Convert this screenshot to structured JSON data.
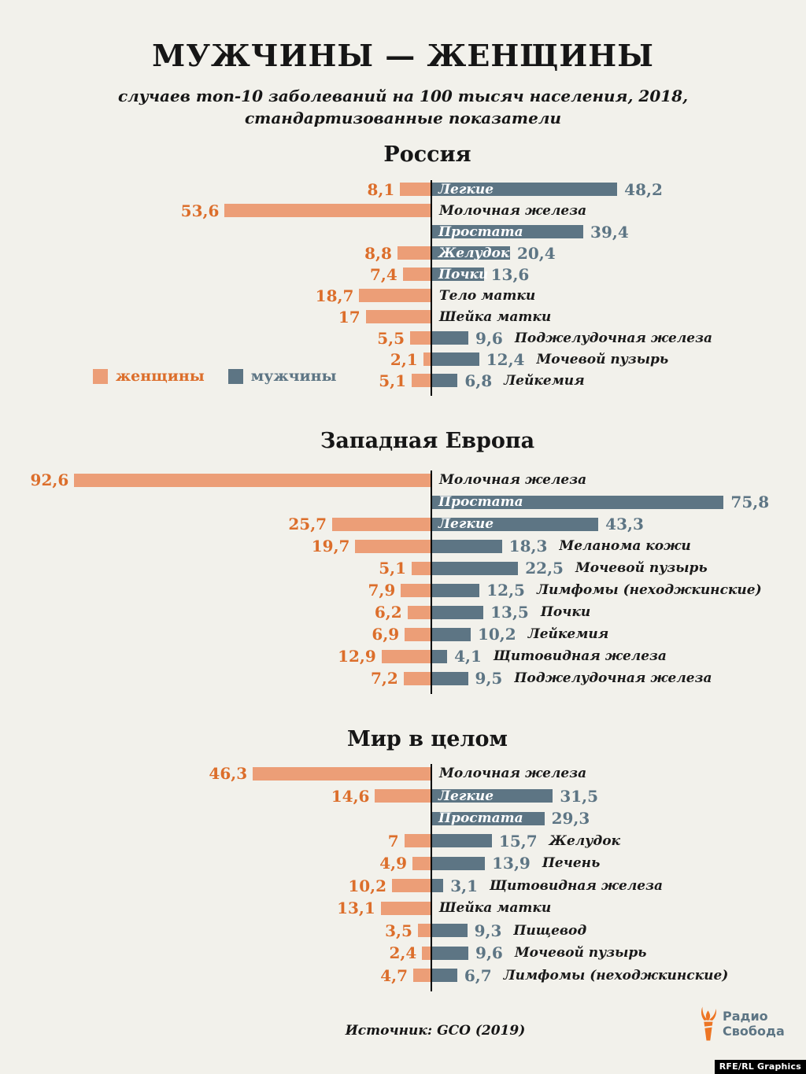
{
  "header": {
    "title": "МУЖЧИНЫ — ЖЕНЩИНЫ",
    "subtitle_line1": "случаев топ-10 заболеваний на 100 тысяч населения, 2018,",
    "subtitle_line2": "стандартизованные показатели"
  },
  "legend": {
    "women_label": "женщины",
    "men_label": "мужчины"
  },
  "footer": {
    "source": "Источник: GCO (2019)",
    "brand_line1": "Радио",
    "brand_line2": "Свобода",
    "credit_badge": "RFE/RL Graphics"
  },
  "colors": {
    "background": "#F2F1EB",
    "women_bar": "#EC9E77",
    "women_value_text": "#DC6E2B",
    "men_bar": "#5D7584",
    "men_value_text": "#5D7584",
    "category_label": "#1A1A1A",
    "label_inside_bar": "#FFFFFF",
    "axis": "#000000",
    "brand_orange": "#ED7524",
    "brand_slate": "#5D7584"
  },
  "chart_data": [
    {
      "type": "bar",
      "orientation": "diverging-horizontal",
      "region": "Россия",
      "series": [
        "женщины",
        "мужчины"
      ],
      "rows": [
        {
          "label": "Легкие",
          "women": 8.1,
          "women_display": "8,1",
          "men": 48.2,
          "men_display": "48,2",
          "label_pos": "inside"
        },
        {
          "label": "Молочная железа",
          "women": 53.6,
          "women_display": "53,6",
          "men": null,
          "men_display": "",
          "label_pos": "axis"
        },
        {
          "label": "Простата",
          "women": null,
          "women_display": "",
          "men": 39.4,
          "men_display": "39,4",
          "label_pos": "inside"
        },
        {
          "label": "Желудок",
          "women": 8.8,
          "women_display": "8,8",
          "men": 20.4,
          "men_display": "20,4",
          "label_pos": "inside"
        },
        {
          "label": "Почки",
          "women": 7.4,
          "women_display": "7,4",
          "men": 13.6,
          "men_display": "13,6",
          "label_pos": "inside"
        },
        {
          "label": "Тело матки",
          "women": 18.7,
          "women_display": "18,7",
          "men": null,
          "men_display": "",
          "label_pos": "axis"
        },
        {
          "label": "Шейка матки",
          "women": 17,
          "women_display": "17",
          "men": null,
          "men_display": "",
          "label_pos": "axis"
        },
        {
          "label": "Поджелудочная железа",
          "women": 5.5,
          "women_display": "5,5",
          "men": 9.6,
          "men_display": "9,6",
          "label_pos": "after"
        },
        {
          "label": "Мочевой пузырь",
          "women": 2.1,
          "women_display": "2,1",
          "men": 12.4,
          "men_display": "12,4",
          "label_pos": "after"
        },
        {
          "label": "Лейкемия",
          "women": 5.1,
          "women_display": "5,1",
          "men": 6.8,
          "men_display": "6,8",
          "label_pos": "after"
        }
      ]
    },
    {
      "type": "bar",
      "orientation": "diverging-horizontal",
      "region": "Западная Европа",
      "series": [
        "женщины",
        "мужчины"
      ],
      "rows": [
        {
          "label": "Молочная железа",
          "women": 92.6,
          "women_display": "92,6",
          "men": null,
          "men_display": "",
          "label_pos": "axis"
        },
        {
          "label": "Простата",
          "women": null,
          "women_display": "",
          "men": 75.8,
          "men_display": "75,8",
          "label_pos": "inside"
        },
        {
          "label": "Легкие",
          "women": 25.7,
          "women_display": "25,7",
          "men": 43.3,
          "men_display": "43,3",
          "label_pos": "inside"
        },
        {
          "label": "Меланома кожи",
          "women": 19.7,
          "women_display": "19,7",
          "men": 18.3,
          "men_display": "18,3",
          "label_pos": "after"
        },
        {
          "label": "Мочевой пузырь",
          "women": 5.1,
          "women_display": "5,1",
          "men": 22.5,
          "men_display": "22,5",
          "label_pos": "after"
        },
        {
          "label": "Лимфомы (неходжкинские)",
          "women": 7.9,
          "women_display": "7,9",
          "men": 12.5,
          "men_display": "12,5",
          "label_pos": "after"
        },
        {
          "label": "Почки",
          "women": 6.2,
          "women_display": "6,2",
          "men": 13.5,
          "men_display": "13,5",
          "label_pos": "after"
        },
        {
          "label": "Лейкемия",
          "women": 6.9,
          "women_display": "6,9",
          "men": 10.2,
          "men_display": "10,2",
          "label_pos": "after"
        },
        {
          "label": "Щитовидная железа",
          "women": 12.9,
          "women_display": "12,9",
          "men": 4.1,
          "men_display": "4,1",
          "label_pos": "after"
        },
        {
          "label": "Поджелудочная железа",
          "women": 7.2,
          "women_display": "7,2",
          "men": 9.5,
          "men_display": "9,5",
          "label_pos": "after"
        }
      ]
    },
    {
      "type": "bar",
      "orientation": "diverging-horizontal",
      "region": "Мир в целом",
      "series": [
        "женщины",
        "мужчины"
      ],
      "rows": [
        {
          "label": "Молочная железа",
          "women": 46.3,
          "women_display": "46,3",
          "men": null,
          "men_display": "",
          "label_pos": "axis"
        },
        {
          "label": "Легкие",
          "women": 14.6,
          "women_display": "14,6",
          "men": 31.5,
          "men_display": "31,5",
          "label_pos": "inside"
        },
        {
          "label": "Простата",
          "women": null,
          "women_display": "",
          "men": 29.3,
          "men_display": "29,3",
          "label_pos": "inside"
        },
        {
          "label": "Желудок",
          "women": 7,
          "women_display": "7",
          "men": 15.7,
          "men_display": "15,7",
          "label_pos": "after"
        },
        {
          "label": "Печень",
          "women": 4.9,
          "women_display": "4,9",
          "men": 13.9,
          "men_display": "13,9",
          "label_pos": "after"
        },
        {
          "label": "Щитовидная железа",
          "women": 10.2,
          "women_display": "10,2",
          "men": 3.1,
          "men_display": "3,1",
          "label_pos": "after"
        },
        {
          "label": "Шейка матки",
          "women": 13.1,
          "women_display": "13,1",
          "men": null,
          "men_display": "",
          "label_pos": "axis"
        },
        {
          "label": "Пищевод",
          "women": 3.5,
          "women_display": "3,5",
          "men": 9.3,
          "men_display": "9,3",
          "label_pos": "after"
        },
        {
          "label": "Мочевой пузырь",
          "women": 2.4,
          "women_display": "2,4",
          "men": 9.6,
          "men_display": "9,6",
          "label_pos": "after"
        },
        {
          "label": "Лимфомы (неходжкинские)",
          "women": 4.7,
          "women_display": "4,7",
          "men": 6.7,
          "men_display": "6,7",
          "label_pos": "after"
        }
      ]
    }
  ]
}
